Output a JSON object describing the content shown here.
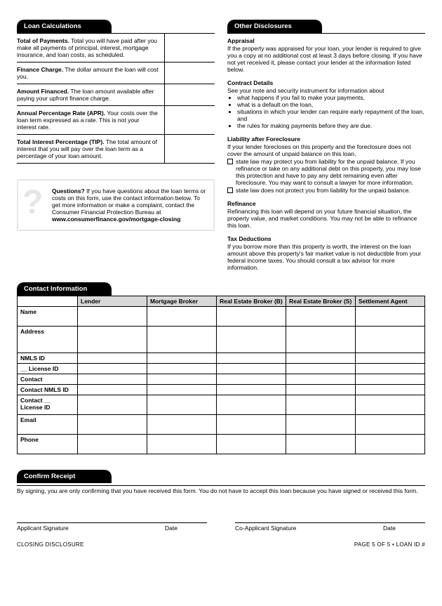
{
  "loanCalc": {
    "header": "Loan Calculations",
    "rows": [
      {
        "title": "Total of Payments.",
        "desc": "Total you will have paid after you make all payments of principal, interest, mortgage insurance, and loan costs, as scheduled."
      },
      {
        "title": "Finance Charge.",
        "desc": "The dollar amount the loan will cost you."
      },
      {
        "title": "Amount Financed.",
        "desc": "The loan amount available after paying your upfront finance charge."
      },
      {
        "title": "Annual Percentage Rate (APR).",
        "desc": "Your costs over the loan term expressed as a rate. This is not your interest rate."
      },
      {
        "title": "Total Interest Percentage (TIP).",
        "desc": "The total amount of interest that you will pay over the loan term as a percentage of your loan amount."
      }
    ]
  },
  "questions": {
    "title": "Questions?",
    "body": "If you have questions about the loan terms or costs on this form, use the contact information below. To get more information or make a complaint, contact the Consumer Financial Protection Bureau at",
    "url": "www.consumerfinance.gov/mortgage-closing"
  },
  "otherDisc": {
    "header": "Other Disclosures",
    "appraisal": {
      "title": "Appraisal",
      "body": "If the property was appraised for your loan, your lender is required to give you a copy at no additional cost at least 3 days before closing. If you have not yet received it, please contact your lender at the information listed below."
    },
    "contract": {
      "title": "Contract Details",
      "intro": "See your note and security instrument for information about",
      "bullets": [
        "what happens if you fail to make your payments,",
        "what is a default on the loan,",
        "situations in which your lender can require early repayment of the loan, and",
        "the rules for making payments before they are due."
      ]
    },
    "liability": {
      "title": "Liability after Foreclosure",
      "intro": "If your lender forecloses on this property and the foreclosure does not cover the amount of unpaid balance on this loan,",
      "check1": "state law may protect you from liability for the unpaid balance. If you refinance or take on any additional debt on this property, you may lose this protection and have to pay any debt remaining even after foreclosure. You may want to consult a lawyer for more information.",
      "check2": "state law does not protect you from liability for the unpaid balance."
    },
    "refinance": {
      "title": "Refinance",
      "body": "Refinancing this loan will depend on your future financial situation, the property value, and market conditions. You may not be able to refinance this loan."
    },
    "tax": {
      "title": "Tax Deductions",
      "body": "If you borrow more than this property is worth, the interest on the loan amount above this property's fair market value is not deductible from your federal income taxes. You should consult a tax advisor for more information."
    }
  },
  "contact": {
    "header": "Contact Information",
    "cols": [
      "Lender",
      "Mortgage Broker",
      "Real Estate Broker (B)",
      "Real Estate Broker (S)",
      "Settlement Agent"
    ],
    "rows": [
      "Name",
      "Address",
      "NMLS ID",
      "__ License ID",
      "Contact",
      "Contact NMLS ID",
      "Contact __ License ID",
      "Email",
      "Phone"
    ]
  },
  "confirm": {
    "header": "Confirm Receipt",
    "body": "By signing, you are only confirming that you have received this form. You do not have to accept this loan because you have signed or received this form.",
    "sig1": "Applicant Signature",
    "sig2": "Co-Applicant Signature",
    "date": "Date"
  },
  "footer": {
    "left": "CLOSING DISCLOSURE",
    "right": "PAGE 5 OF 5 • LOAN ID #"
  }
}
